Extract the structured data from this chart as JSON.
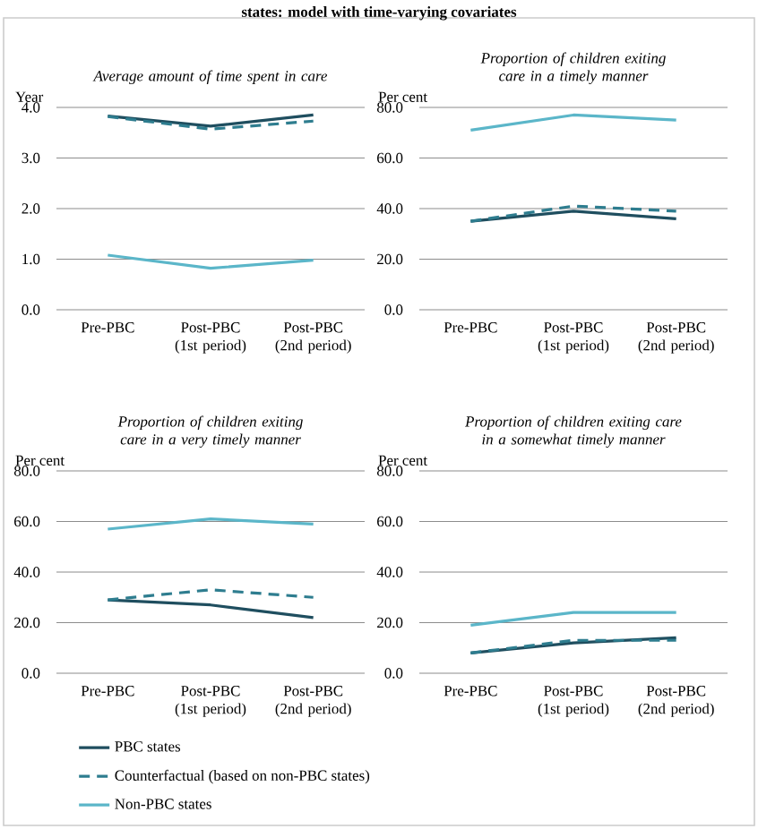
{
  "chart_data": [
    {
      "type": "line",
      "title": "Average amount of time spent in care",
      "ylabel": "Year",
      "annotations": [
        "states: model with time-varying covariates"
      ],
      "categories": [
        "Pre-PBC",
        "Post-PBC (1st period)",
        "Post-PBC (2nd period)"
      ],
      "ylim": [
        0,
        4
      ],
      "yticks": [
        {
          "value": 0,
          "label": "0.0"
        },
        {
          "value": 1,
          "label": "1.0"
        },
        {
          "value": 2,
          "label": "2.0"
        },
        {
          "value": 3,
          "label": "3.0"
        },
        {
          "value": 4,
          "label": "4.0"
        }
      ],
      "grid": "y",
      "series": [
        {
          "color": "#1f4e5f",
          "line_style": "solid",
          "values": [
            3.83,
            3.63,
            3.85
          ]
        },
        {
          "color": "#2e7d8f",
          "line_style": "dashed",
          "values": [
            3.82,
            3.57,
            3.73
          ]
        },
        {
          "color": "#5bb6c9",
          "line_style": "solid",
          "values": [
            1.08,
            0.82,
            0.98
          ]
        }
      ]
    },
    {
      "type": "line",
      "title": "Proportion of children exiting care in a timely manner",
      "ylabel": "Per cent",
      "categories": [
        "Pre-PBC",
        "Post-PBC (1st period)",
        "Post-PBC (2nd period)"
      ],
      "ylim": [
        0,
        80
      ],
      "yticks": [
        {
          "value": 0,
          "label": "0.0"
        },
        {
          "value": 20,
          "label": "20.0"
        },
        {
          "value": 40,
          "label": "40.0"
        },
        {
          "value": 60,
          "label": "60.0"
        },
        {
          "value": 80,
          "label": "80.0"
        }
      ],
      "grid": "y",
      "series": [
        {
          "color": "#1f4e5f",
          "line_style": "solid",
          "values": [
            35,
            39,
            36
          ]
        },
        {
          "color": "#2e7d8f",
          "line_style": "dashed",
          "values": [
            35,
            41,
            39
          ]
        },
        {
          "color": "#5bb6c9",
          "line_style": "solid",
          "values": [
            71,
            77,
            75
          ]
        }
      ]
    },
    {
      "type": "line",
      "title": "Proportion of children exiting care in a very timely manner",
      "ylabel": "Per cent",
      "categories": [
        "Pre-PBC",
        "Post-PBC (1st period)",
        "Post-PBC (2nd period)"
      ],
      "ylim": [
        0,
        80
      ],
      "yticks": [
        {
          "value": 0,
          "label": "0.0"
        },
        {
          "value": 20,
          "label": "20.0"
        },
        {
          "value": 40,
          "label": "40.0"
        },
        {
          "value": 60,
          "label": "60.0"
        },
        {
          "value": 80,
          "label": "80.0"
        }
      ],
      "grid": "y",
      "legend": "bottom",
      "series": [
        {
          "name": "PBC states",
          "color": "#1f4e5f",
          "line_style": "solid",
          "values": [
            29,
            27,
            22
          ]
        },
        {
          "name": "Counterfactual (based on non-PBC states)",
          "color": "#2e7d8f",
          "line_style": "dashed",
          "values": [
            29,
            33,
            30
          ]
        },
        {
          "name": "Non-PBC states",
          "color": "#5bb6c9",
          "line_style": "solid",
          "values": [
            57,
            61,
            59
          ]
        }
      ]
    },
    {
      "type": "line",
      "title": "Proportion of children exiting care in a somewhat timely manner",
      "ylabel": "Per cent",
      "categories": [
        "Pre-PBC",
        "Post-PBC (1st period)",
        "Post-PBC (2nd period)"
      ],
      "ylim": [
        0,
        80
      ],
      "yticks": [
        {
          "value": 0,
          "label": "0.0"
        },
        {
          "value": 20,
          "label": "20.0"
        },
        {
          "value": 40,
          "label": "40.0"
        },
        {
          "value": 60,
          "label": "60.0"
        },
        {
          "value": 80,
          "label": "80.0"
        }
      ],
      "grid": "y",
      "series": [
        {
          "color": "#1f4e5f",
          "line_style": "solid",
          "values": [
            8,
            12,
            14
          ]
        },
        {
          "color": "#2e7d8f",
          "line_style": "dashed",
          "values": [
            8,
            13,
            13
          ]
        },
        {
          "color": "#5bb6c9",
          "line_style": "solid",
          "values": [
            19,
            24,
            24
          ]
        }
      ]
    }
  ]
}
